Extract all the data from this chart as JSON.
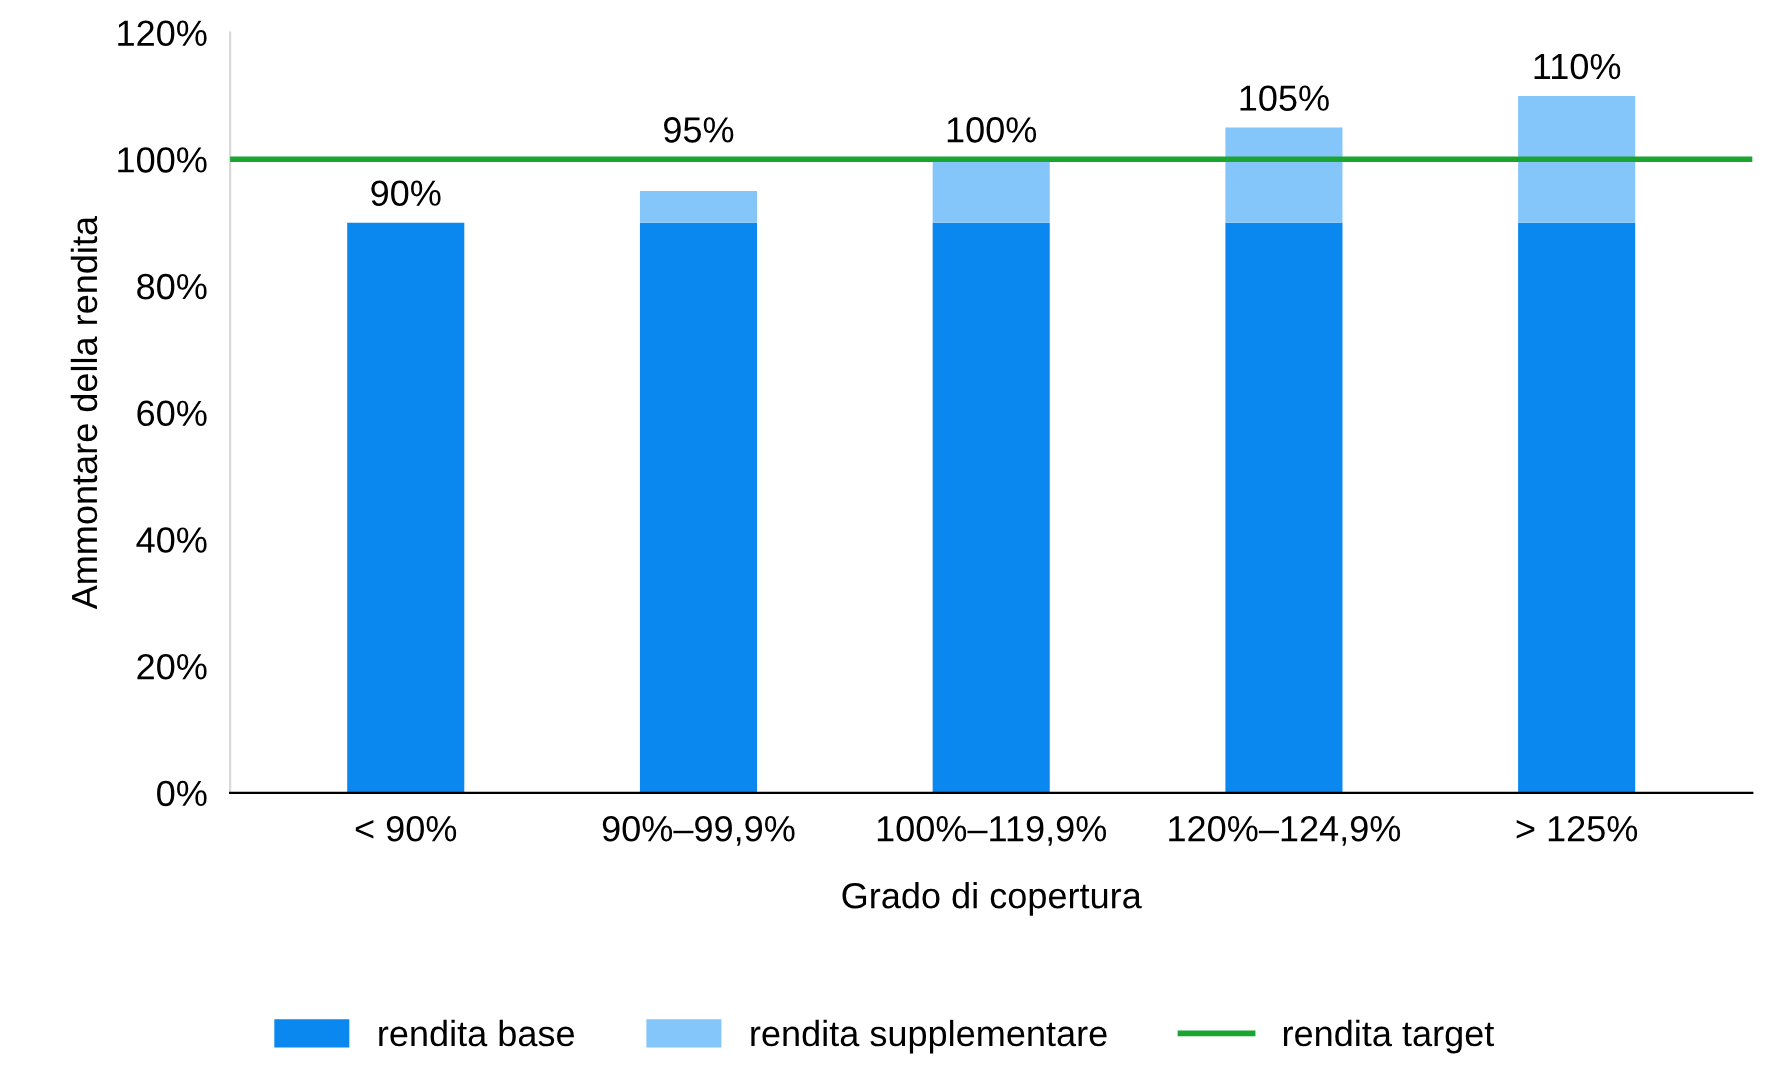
{
  "chart_data": {
    "type": "bar",
    "stacked": true,
    "xlabel": "Grado di copertura",
    "ylabel": "Ammontare della rendita",
    "categories": [
      "< 90%",
      "90%–99,9%",
      "100%–119,9%",
      "120%–124,9%",
      "> 125%"
    ],
    "series": [
      {
        "name": "rendita base",
        "color": "#0a88f0",
        "values": [
          90,
          90,
          90,
          90,
          90
        ]
      },
      {
        "name": "rendita supplementare",
        "color": "#84c5fa",
        "values": [
          0,
          5,
          10,
          15,
          20
        ]
      }
    ],
    "totals": [
      "90%",
      "95%",
      "100%",
      "105%",
      "110%"
    ],
    "ylim": [
      0,
      120
    ],
    "yticks": [
      {
        "value": 0,
        "label": "0%"
      },
      {
        "value": 20,
        "label": "20%"
      },
      {
        "value": 40,
        "label": "40%"
      },
      {
        "value": 60,
        "label": "60%"
      },
      {
        "value": 80,
        "label": "80%"
      },
      {
        "value": 100,
        "label": "100%"
      },
      {
        "value": 120,
        "label": "120%"
      }
    ],
    "ref_lines": [
      {
        "axis": "y",
        "value": 100,
        "label": "rendita target",
        "color": "#1aa530",
        "line_style": "solid"
      }
    ],
    "grid": false,
    "legend": "bottom"
  }
}
